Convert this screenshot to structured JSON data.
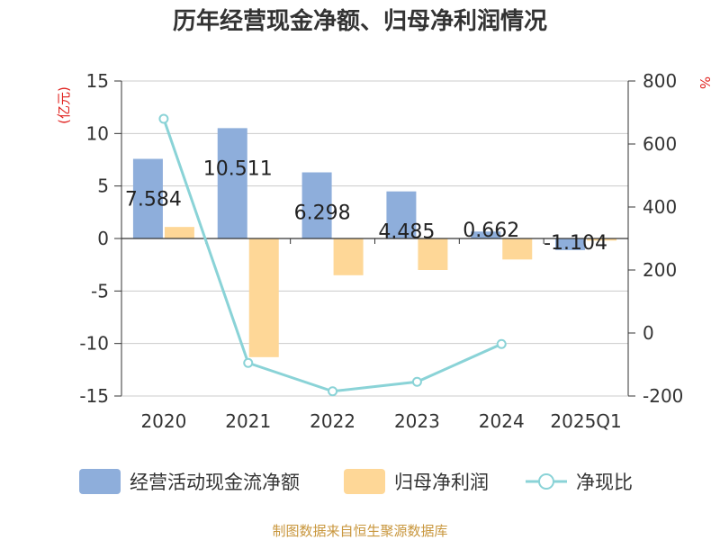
{
  "chart_data": {
    "type": "bar+line",
    "title": "历年经营现金净额、归母净利润情况",
    "categories": [
      "2020",
      "2021",
      "2022",
      "2023",
      "2024",
      "2025Q1"
    ],
    "y_left": {
      "unit": "(亿元)",
      "ylim": [
        -15,
        15
      ],
      "ticks": [
        15,
        10,
        5,
        0,
        -5,
        -10,
        -15
      ]
    },
    "y_right": {
      "unit": "%",
      "ylim": [
        -200,
        800
      ],
      "ticks": [
        800,
        600,
        400,
        200,
        0,
        -200
      ]
    },
    "grid": true,
    "legend_position": "bottom",
    "series": [
      {
        "name": "经营活动现金流净额",
        "type": "bar",
        "axis": "left",
        "color": "#8eaedb",
        "values": [
          7.584,
          10.511,
          6.298,
          4.485,
          0.662,
          -1.104
        ],
        "labels": [
          "7.584",
          "10.511",
          "6.298",
          "4.485",
          "0.662",
          "-1.104"
        ]
      },
      {
        "name": "归母净利润",
        "type": "bar",
        "axis": "left",
        "color": "#fed797",
        "values": [
          1.1,
          -11.3,
          -3.5,
          -3.0,
          -2.0,
          -0.2
        ]
      },
      {
        "name": "净现比",
        "type": "line",
        "axis": "right",
        "color": "#8ad3d7",
        "values": [
          680,
          -95,
          -185,
          -155,
          -35,
          null
        ]
      }
    ],
    "source": "制图数据来自恒生聚源数据库"
  }
}
